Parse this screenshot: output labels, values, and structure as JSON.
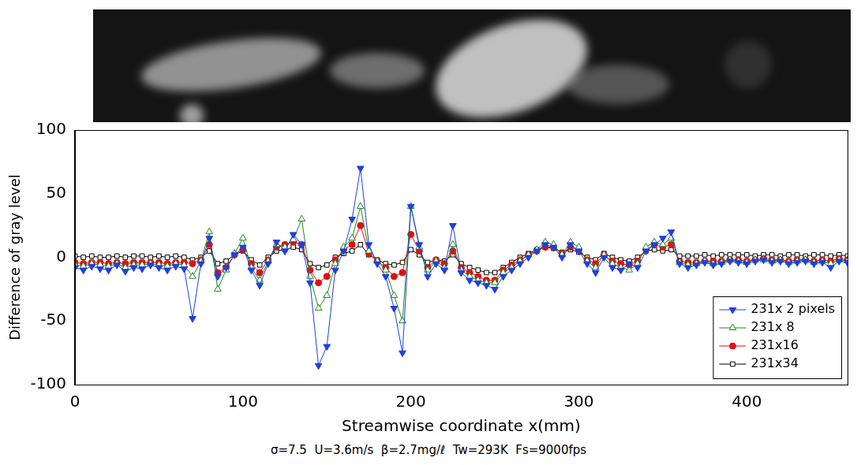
{
  "chart_data": {
    "type": "line",
    "x_label": "Streamwise coordinate x(mm)",
    "y_label": "Difference of gray level",
    "caption": "σ=7.5  U=3.6m/s  β=2.7mg/ℓ  Tw=293K  Fs=9000fps",
    "xlim": [
      0,
      460
    ],
    "xticks": [
      0,
      100,
      200,
      300,
      400
    ],
    "ylim": [
      -100,
      100
    ],
    "yticks": [
      -100,
      -50,
      0,
      50,
      100
    ],
    "grid": false,
    "legend": "lower right",
    "x": [
      0,
      5,
      10,
      15,
      20,
      25,
      30,
      35,
      40,
      45,
      50,
      55,
      60,
      65,
      70,
      75,
      80,
      85,
      90,
      95,
      100,
      105,
      110,
      115,
      120,
      125,
      130,
      135,
      140,
      145,
      150,
      155,
      160,
      165,
      170,
      175,
      180,
      185,
      190,
      195,
      200,
      205,
      210,
      215,
      220,
      225,
      230,
      235,
      240,
      245,
      250,
      255,
      260,
      265,
      270,
      275,
      280,
      285,
      290,
      295,
      300,
      305,
      310,
      315,
      320,
      325,
      330,
      335,
      340,
      345,
      350,
      355,
      360,
      365,
      370,
      375,
      380,
      385,
      390,
      395,
      400,
      405,
      410,
      415,
      420,
      425,
      430,
      435,
      440,
      445,
      450,
      455,
      460
    ],
    "series": [
      {
        "name": "231x 2 pixels",
        "color": "#1f3fe0",
        "marker": "triangle_down",
        "line_style": "solid",
        "values": [
          -8,
          -10,
          -7,
          -9,
          -10,
          -6,
          -11,
          -8,
          -9,
          -6,
          -8,
          -10,
          -7,
          -9,
          -48,
          -5,
          15,
          -15,
          -8,
          2,
          8,
          -10,
          -22,
          -5,
          12,
          5,
          18,
          10,
          -20,
          -85,
          -70,
          -10,
          5,
          30,
          70,
          10,
          -5,
          -15,
          -40,
          -75,
          40,
          10,
          -15,
          -5,
          -10,
          25,
          -12,
          -18,
          -20,
          -22,
          -25,
          -15,
          -10,
          -5,
          0,
          5,
          10,
          8,
          0,
          10,
          5,
          -5,
          -12,
          0,
          -8,
          -10,
          -5,
          -8,
          5,
          10,
          15,
          20,
          -5,
          -8,
          -6,
          -4,
          -6,
          -5,
          -3,
          -4,
          -5,
          -3,
          -2,
          -4,
          -3,
          -5,
          -4,
          -3,
          -5,
          -4,
          -8,
          -3,
          -4
        ]
      },
      {
        "name": "231x 8",
        "color": "#1a8a1a",
        "marker": "triangle_open",
        "line_style": "solid",
        "values": [
          -6,
          -7,
          -5,
          -6,
          -7,
          -5,
          -8,
          -6,
          -6,
          -5,
          -6,
          -7,
          -5,
          -6,
          -15,
          -3,
          20,
          -25,
          -10,
          3,
          15,
          -8,
          -18,
          -3,
          10,
          8,
          14,
          30,
          -15,
          -40,
          -30,
          -5,
          8,
          15,
          40,
          5,
          -3,
          -10,
          -30,
          -50,
          40,
          8,
          -10,
          -3,
          -8,
          10,
          -10,
          -15,
          -18,
          -20,
          -20,
          -12,
          -8,
          -3,
          2,
          6,
          12,
          10,
          2,
          12,
          8,
          -3,
          -8,
          2,
          -5,
          -8,
          -10,
          -5,
          8,
          12,
          10,
          15,
          -4,
          -6,
          -5,
          -3,
          -5,
          -4,
          -2,
          -3,
          -4,
          -2,
          -2,
          -3,
          -2,
          -4,
          -3,
          -2,
          -4,
          -3,
          -5,
          -2,
          -3
        ]
      },
      {
        "name": "231x16",
        "color": "#e01010",
        "marker": "circle",
        "line_style": "solid",
        "values": [
          -4,
          -5,
          -4,
          -4,
          -5,
          -4,
          -5,
          -4,
          -4,
          -4,
          -4,
          -5,
          -4,
          -4,
          -5,
          -2,
          10,
          -12,
          -8,
          2,
          6,
          -5,
          -12,
          -2,
          8,
          10,
          12,
          10,
          -10,
          -20,
          -15,
          -2,
          6,
          10,
          25,
          3,
          -3,
          -8,
          -15,
          -12,
          18,
          5,
          -8,
          -2,
          -5,
          5,
          -8,
          -12,
          -15,
          -18,
          -18,
          -10,
          -6,
          -2,
          2,
          5,
          8,
          8,
          3,
          8,
          6,
          -2,
          -5,
          2,
          -3,
          -5,
          -6,
          -3,
          6,
          10,
          8,
          10,
          -3,
          -4,
          -4,
          -3,
          -3,
          -3,
          -2,
          -2,
          -3,
          -2,
          -1,
          -2,
          -2,
          -3,
          -2,
          -2,
          -3,
          -2,
          -3,
          -1,
          -2
        ]
      },
      {
        "name": "231x34",
        "color": "#000000",
        "marker": "square_open",
        "line_style": "solid",
        "values": [
          1,
          0,
          1,
          0,
          0,
          1,
          0,
          1,
          1,
          0,
          1,
          0,
          1,
          0,
          -2,
          0,
          5,
          -5,
          -3,
          2,
          5,
          -2,
          -6,
          0,
          5,
          6,
          8,
          6,
          -5,
          -8,
          -6,
          0,
          3,
          5,
          10,
          2,
          -2,
          -5,
          -6,
          -4,
          6,
          2,
          -4,
          -2,
          -3,
          2,
          -5,
          -8,
          -10,
          -12,
          -12,
          -8,
          -4,
          0,
          3,
          6,
          8,
          7,
          4,
          6,
          4,
          0,
          -2,
          3,
          0,
          -2,
          -3,
          0,
          5,
          6,
          5,
          6,
          1,
          1,
          1,
          2,
          1,
          2,
          2,
          2,
          2,
          1,
          2,
          2,
          1,
          2,
          2,
          1,
          2,
          2,
          1,
          2,
          1
        ]
      }
    ]
  }
}
